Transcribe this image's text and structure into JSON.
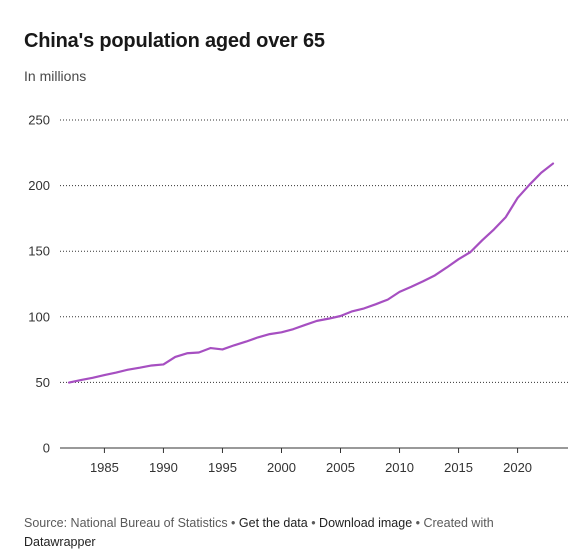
{
  "title": "China's population aged over 65",
  "subtitle": "In millions",
  "footer": {
    "source": "Source: National Bureau of Statistics",
    "separator": " • ",
    "get_data": "Get the data",
    "download_image": "Download image",
    "created_with": "Created with",
    "tool": "Datawrapper"
  },
  "colors": {
    "line": "#a64fc1",
    "grid": "#333333",
    "axis": "#333333"
  },
  "chart_data": {
    "type": "line",
    "title": "China's population aged over 65",
    "subtitle": "In millions",
    "xlabel": "",
    "ylabel": "",
    "xlim": [
      1982,
      2023
    ],
    "ylim": [
      0,
      250
    ],
    "y_ticks": [
      0,
      50,
      100,
      150,
      200,
      250
    ],
    "x_ticks": [
      1985,
      1990,
      1995,
      2000,
      2005,
      2010,
      2015,
      2020
    ],
    "grid": "horizontal-dotted",
    "series": [
      {
        "x": [
          1982,
          1983,
          1984,
          1985,
          1986,
          1987,
          1988,
          1989,
          1990,
          1991,
          1992,
          1993,
          1994,
          1995,
          1996,
          1997,
          1998,
          1999,
          2000,
          2001,
          2002,
          2003,
          2004,
          2005,
          2006,
          2007,
          2008,
          2009,
          2010,
          2011,
          2012,
          2013,
          2014,
          2015,
          2016,
          2017,
          2018,
          2019,
          2020,
          2021,
          2022,
          2023
        ],
        "values": [
          49.9,
          51.8,
          53.5,
          55.6,
          57.5,
          59.7,
          61.2,
          62.9,
          63.7,
          69.4,
          72.2,
          72.8,
          76.2,
          75.1,
          78.3,
          81.1,
          84.3,
          86.8,
          88.2,
          90.6,
          93.8,
          96.9,
          98.6,
          100.6,
          104.2,
          106.4,
          109.6,
          113.1,
          119.0,
          122.9,
          127.1,
          131.6,
          137.6,
          143.9,
          149.3,
          158.3,
          166.6,
          176.0,
          190.6,
          200.6,
          209.8,
          216.8
        ]
      }
    ]
  }
}
